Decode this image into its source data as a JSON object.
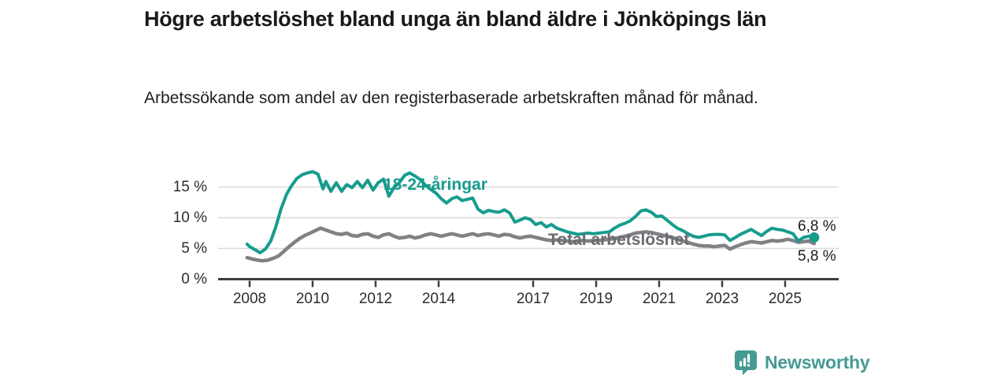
{
  "header": {
    "title": "Högre arbetslöshet bland unga än bland äldre i Jönköpings län",
    "subtitle": "Arbetssökande som andel av den registerbaserade arbetskraften månad för månad."
  },
  "chart_data": {
    "type": "line",
    "title": "Högre arbetslöshet bland unga än bland äldre i Jönköpings län",
    "subtitle": "Arbetssökande som andel av den registerbaserade arbetskraften månad för månad.",
    "grid": true,
    "legend_position": "inline-labels",
    "x_axis": {
      "tick_labels": [
        "2008",
        "2010",
        "2012",
        "2014",
        "2017",
        "2019",
        "2021",
        "2023",
        "2025"
      ],
      "tick_years": [
        2008,
        2010,
        2012,
        2014,
        2017,
        2019,
        2021,
        2023,
        2025
      ],
      "range_years": [
        2007.8,
        2026.7
      ]
    },
    "y_axis": {
      "tick_labels": [
        "0 %",
        "5 %",
        "10 %",
        "15 %"
      ],
      "tick_values": [
        0,
        5,
        10,
        15
      ],
      "range": [
        0,
        18.5
      ],
      "unit": "%"
    },
    "series": [
      {
        "name": "18-24-åringar",
        "color": "#169c8d",
        "label_color": "#169c8d",
        "end_label": "6,8 %",
        "end_value": 6.8,
        "end_dot": true,
        "points": [
          [
            2007.92,
            5.7
          ],
          [
            2008.0,
            5.3
          ],
          [
            2008.17,
            4.8
          ],
          [
            2008.33,
            4.3
          ],
          [
            2008.5,
            4.9
          ],
          [
            2008.67,
            6.2
          ],
          [
            2008.83,
            8.5
          ],
          [
            2009.0,
            11.5
          ],
          [
            2009.17,
            13.8
          ],
          [
            2009.33,
            15.2
          ],
          [
            2009.5,
            16.4
          ],
          [
            2009.67,
            17.0
          ],
          [
            2009.83,
            17.3
          ],
          [
            2010.0,
            17.5
          ],
          [
            2010.17,
            17.1
          ],
          [
            2010.33,
            14.7
          ],
          [
            2010.42,
            15.9
          ],
          [
            2010.58,
            14.3
          ],
          [
            2010.75,
            15.7
          ],
          [
            2010.92,
            14.3
          ],
          [
            2011.08,
            15.4
          ],
          [
            2011.25,
            14.9
          ],
          [
            2011.42,
            15.9
          ],
          [
            2011.58,
            14.9
          ],
          [
            2011.75,
            16.1
          ],
          [
            2011.92,
            14.5
          ],
          [
            2012.08,
            15.7
          ],
          [
            2012.25,
            16.3
          ],
          [
            2012.42,
            13.5
          ],
          [
            2012.58,
            14.9
          ],
          [
            2012.75,
            15.7
          ],
          [
            2012.92,
            16.9
          ],
          [
            2013.08,
            17.3
          ],
          [
            2013.25,
            16.8
          ],
          [
            2013.42,
            16.2
          ],
          [
            2013.58,
            15.3
          ],
          [
            2013.75,
            14.6
          ],
          [
            2013.92,
            14.0
          ],
          [
            2014.08,
            13.1
          ],
          [
            2014.25,
            12.4
          ],
          [
            2014.42,
            13.1
          ],
          [
            2014.58,
            13.4
          ],
          [
            2014.75,
            12.8
          ],
          [
            2014.92,
            13.0
          ],
          [
            2015.08,
            13.2
          ],
          [
            2015.25,
            11.4
          ],
          [
            2015.42,
            10.8
          ],
          [
            2015.58,
            11.2
          ],
          [
            2015.75,
            11.0
          ],
          [
            2015.92,
            10.9
          ],
          [
            2016.08,
            11.3
          ],
          [
            2016.25,
            10.8
          ],
          [
            2016.42,
            9.3
          ],
          [
            2016.58,
            9.6
          ],
          [
            2016.75,
            10.0
          ],
          [
            2016.92,
            9.7
          ],
          [
            2017.08,
            8.9
          ],
          [
            2017.25,
            9.2
          ],
          [
            2017.42,
            8.5
          ],
          [
            2017.58,
            8.9
          ],
          [
            2017.75,
            8.3
          ],
          [
            2017.92,
            8.0
          ],
          [
            2018.08,
            7.7
          ],
          [
            2018.25,
            7.5
          ],
          [
            2018.42,
            7.3
          ],
          [
            2018.58,
            7.4
          ],
          [
            2018.75,
            7.5
          ],
          [
            2018.92,
            7.4
          ],
          [
            2019.08,
            7.5
          ],
          [
            2019.25,
            7.6
          ],
          [
            2019.42,
            7.7
          ],
          [
            2019.58,
            8.3
          ],
          [
            2019.75,
            8.8
          ],
          [
            2019.92,
            9.1
          ],
          [
            2020.08,
            9.5
          ],
          [
            2020.25,
            10.2
          ],
          [
            2020.42,
            11.1
          ],
          [
            2020.58,
            11.3
          ],
          [
            2020.75,
            10.9
          ],
          [
            2020.92,
            10.2
          ],
          [
            2021.08,
            10.3
          ],
          [
            2021.25,
            9.6
          ],
          [
            2021.42,
            8.9
          ],
          [
            2021.58,
            8.3
          ],
          [
            2021.75,
            7.9
          ],
          [
            2021.92,
            7.4
          ],
          [
            2022.08,
            7.0
          ],
          [
            2022.25,
            6.8
          ],
          [
            2022.42,
            7.0
          ],
          [
            2022.58,
            7.2
          ],
          [
            2022.75,
            7.3
          ],
          [
            2022.92,
            7.3
          ],
          [
            2023.08,
            7.2
          ],
          [
            2023.25,
            6.3
          ],
          [
            2023.42,
            6.8
          ],
          [
            2023.58,
            7.3
          ],
          [
            2023.75,
            7.7
          ],
          [
            2023.92,
            8.1
          ],
          [
            2024.08,
            7.6
          ],
          [
            2024.25,
            7.1
          ],
          [
            2024.42,
            7.8
          ],
          [
            2024.58,
            8.3
          ],
          [
            2024.75,
            8.1
          ],
          [
            2024.92,
            8.0
          ],
          [
            2025.08,
            7.7
          ],
          [
            2025.25,
            7.4
          ],
          [
            2025.42,
            6.2
          ],
          [
            2025.58,
            6.8
          ],
          [
            2025.75,
            7.0
          ],
          [
            2025.92,
            6.8
          ]
        ]
      },
      {
        "name": "Total arbetslöshet",
        "color": "#818185",
        "label_color": "#6b6b70",
        "end_label": "5,8 %",
        "end_value": 5.8,
        "end_dot": false,
        "points": [
          [
            2007.92,
            3.5
          ],
          [
            2008.08,
            3.3
          ],
          [
            2008.25,
            3.1
          ],
          [
            2008.42,
            3.0
          ],
          [
            2008.58,
            3.1
          ],
          [
            2008.75,
            3.4
          ],
          [
            2008.92,
            3.8
          ],
          [
            2009.08,
            4.5
          ],
          [
            2009.25,
            5.3
          ],
          [
            2009.42,
            6.0
          ],
          [
            2009.58,
            6.6
          ],
          [
            2009.75,
            7.1
          ],
          [
            2009.92,
            7.5
          ],
          [
            2010.08,
            7.9
          ],
          [
            2010.25,
            8.3
          ],
          [
            2010.42,
            8.0
          ],
          [
            2010.58,
            7.7
          ],
          [
            2010.75,
            7.4
          ],
          [
            2010.92,
            7.3
          ],
          [
            2011.08,
            7.5
          ],
          [
            2011.25,
            7.1
          ],
          [
            2011.42,
            7.0
          ],
          [
            2011.58,
            7.3
          ],
          [
            2011.75,
            7.4
          ],
          [
            2011.92,
            7.0
          ],
          [
            2012.08,
            6.8
          ],
          [
            2012.25,
            7.2
          ],
          [
            2012.42,
            7.4
          ],
          [
            2012.58,
            7.0
          ],
          [
            2012.75,
            6.7
          ],
          [
            2012.92,
            6.8
          ],
          [
            2013.08,
            7.0
          ],
          [
            2013.25,
            6.7
          ],
          [
            2013.42,
            6.9
          ],
          [
            2013.58,
            7.2
          ],
          [
            2013.75,
            7.4
          ],
          [
            2013.92,
            7.2
          ],
          [
            2014.08,
            7.0
          ],
          [
            2014.25,
            7.2
          ],
          [
            2014.42,
            7.4
          ],
          [
            2014.58,
            7.2
          ],
          [
            2014.75,
            7.0
          ],
          [
            2014.92,
            7.2
          ],
          [
            2015.08,
            7.4
          ],
          [
            2015.25,
            7.1
          ],
          [
            2015.42,
            7.3
          ],
          [
            2015.58,
            7.4
          ],
          [
            2015.75,
            7.2
          ],
          [
            2015.92,
            7.0
          ],
          [
            2016.08,
            7.3
          ],
          [
            2016.25,
            7.2
          ],
          [
            2016.42,
            6.9
          ],
          [
            2016.58,
            6.7
          ],
          [
            2016.75,
            6.9
          ],
          [
            2016.92,
            7.0
          ],
          [
            2017.08,
            6.8
          ],
          [
            2017.25,
            6.6
          ],
          [
            2017.42,
            6.4
          ],
          [
            2017.58,
            6.3
          ],
          [
            2017.75,
            6.4
          ],
          [
            2017.92,
            6.3
          ],
          [
            2018.08,
            6.2
          ],
          [
            2018.25,
            6.1
          ],
          [
            2018.42,
            6.2
          ],
          [
            2018.58,
            6.3
          ],
          [
            2018.75,
            6.2
          ],
          [
            2018.92,
            6.3
          ],
          [
            2019.08,
            6.3
          ],
          [
            2019.25,
            6.4
          ],
          [
            2019.42,
            6.5
          ],
          [
            2019.58,
            6.6
          ],
          [
            2019.75,
            6.8
          ],
          [
            2019.92,
            7.0
          ],
          [
            2020.08,
            7.2
          ],
          [
            2020.25,
            7.5
          ],
          [
            2020.42,
            7.6
          ],
          [
            2020.58,
            7.7
          ],
          [
            2020.75,
            7.6
          ],
          [
            2020.92,
            7.4
          ],
          [
            2021.08,
            7.2
          ],
          [
            2021.25,
            7.0
          ],
          [
            2021.42,
            6.8
          ],
          [
            2021.58,
            6.5
          ],
          [
            2021.75,
            6.2
          ],
          [
            2021.92,
            6.0
          ],
          [
            2022.08,
            5.7
          ],
          [
            2022.25,
            5.5
          ],
          [
            2022.42,
            5.4
          ],
          [
            2022.58,
            5.4
          ],
          [
            2022.75,
            5.3
          ],
          [
            2022.92,
            5.4
          ],
          [
            2023.08,
            5.5
          ],
          [
            2023.25,
            4.9
          ],
          [
            2023.42,
            5.3
          ],
          [
            2023.58,
            5.6
          ],
          [
            2023.75,
            5.9
          ],
          [
            2023.92,
            6.1
          ],
          [
            2024.08,
            6.0
          ],
          [
            2024.25,
            5.9
          ],
          [
            2024.42,
            6.1
          ],
          [
            2024.58,
            6.3
          ],
          [
            2024.75,
            6.2
          ],
          [
            2024.92,
            6.3
          ],
          [
            2025.08,
            6.5
          ],
          [
            2025.25,
            6.3
          ],
          [
            2025.42,
            6.0
          ],
          [
            2025.58,
            6.1
          ],
          [
            2025.75,
            6.2
          ],
          [
            2025.92,
            5.8
          ]
        ]
      }
    ],
    "colors": {
      "gridline": "#d9d9d9",
      "axis": "#3d3d3d",
      "tick_text": "#2d2d2d",
      "value_label_text": "#1b1b1b"
    }
  },
  "footer": {
    "brand": "Newsworthy",
    "brand_color": "#459a93",
    "logo_icon": "speech-bubble-bar-chart"
  }
}
